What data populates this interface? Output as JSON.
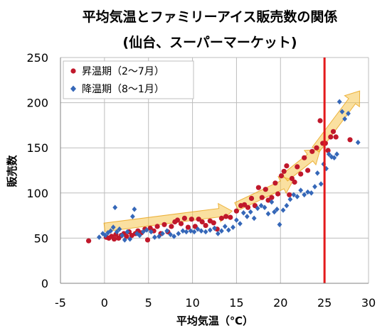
{
  "chart_data": {
    "type": "scatter",
    "title": "平均気温とファミリーアイス販売数の関係",
    "subtitle": "(仙台、スーパーマーケット)",
    "xlabel": "平均気温（℃）",
    "ylabel": "販売数",
    "xlim": [
      -5,
      30
    ],
    "ylim": [
      0,
      250
    ],
    "x_ticks": [
      -5,
      0,
      5,
      10,
      15,
      20,
      25,
      30
    ],
    "y_ticks": [
      0,
      50,
      100,
      150,
      200,
      250
    ],
    "grid": true,
    "legend_position": "top-left",
    "reference_line": {
      "axis": "x",
      "value": 25,
      "color": "#e31a1c"
    },
    "trend_arrows": [
      {
        "from": [
          0,
          62
        ],
        "to": [
          14.5,
          80
        ],
        "color": "#f5c242"
      },
      {
        "from": [
          15,
          85
        ],
        "to": [
          21.5,
          115
        ],
        "color": "#f5c242"
      },
      {
        "from": [
          20.5,
          117
        ],
        "to": [
          24.5,
          148
        ],
        "color": "#f5c242"
      },
      {
        "from": [
          24,
          148
        ],
        "to": [
          29,
          213
        ],
        "color": "#f5c242"
      }
    ],
    "series": [
      {
        "name": "昇温期（2～7月）",
        "marker": "circle",
        "color": "#c0182b",
        "points": [
          [
            -1.8,
            47
          ],
          [
            0.2,
            51
          ],
          [
            0.5,
            50
          ],
          [
            0.8,
            52
          ],
          [
            1.1,
            49
          ],
          [
            1.3,
            54
          ],
          [
            1.6,
            50
          ],
          [
            1.9,
            53
          ],
          [
            2.2,
            55
          ],
          [
            2.5,
            52
          ],
          [
            2.8,
            57
          ],
          [
            3.1,
            53
          ],
          [
            3.5,
            55
          ],
          [
            3.8,
            58
          ],
          [
            4.2,
            56
          ],
          [
            4.6,
            60
          ],
          [
            4.9,
            48
          ],
          [
            5.2,
            61
          ],
          [
            5.6,
            58
          ],
          [
            6.0,
            63
          ],
          [
            6.4,
            55
          ],
          [
            6.8,
            65
          ],
          [
            7.2,
            57
          ],
          [
            7.6,
            63
          ],
          [
            8.0,
            68
          ],
          [
            8.3,
            70
          ],
          [
            8.7,
            66
          ],
          [
            9.1,
            72
          ],
          [
            9.5,
            62
          ],
          [
            9.9,
            71
          ],
          [
            10.3,
            63
          ],
          [
            10.7,
            71
          ],
          [
            11.1,
            68
          ],
          [
            11.5,
            64
          ],
          [
            12.0,
            69
          ],
          [
            12.4,
            67
          ],
          [
            12.8,
            60
          ],
          [
            13.3,
            72
          ],
          [
            13.8,
            74
          ],
          [
            14.3,
            73
          ],
          [
            15.0,
            80
          ],
          [
            15.5,
            86
          ],
          [
            15.9,
            87
          ],
          [
            16.3,
            84
          ],
          [
            16.7,
            94
          ],
          [
            17.1,
            86
          ],
          [
            17.5,
            106
          ],
          [
            17.9,
            95
          ],
          [
            18.3,
            104
          ],
          [
            18.6,
            92
          ],
          [
            19.0,
            95
          ],
          [
            19.4,
            111
          ],
          [
            19.7,
            99
          ],
          [
            20.1,
            119
          ],
          [
            20.4,
            124
          ],
          [
            20.7,
            130
          ],
          [
            21.0,
            98
          ],
          [
            21.3,
            116
          ],
          [
            21.6,
            112
          ],
          [
            21.9,
            129
          ],
          [
            22.3,
            121
          ],
          [
            22.7,
            139
          ],
          [
            23.1,
            125
          ],
          [
            23.6,
            146
          ],
          [
            24.1,
            150
          ],
          [
            24.5,
            180
          ],
          [
            24.8,
            155
          ],
          [
            25.1,
            155
          ],
          [
            25.4,
            147
          ],
          [
            25.7,
            162
          ],
          [
            26.0,
            168
          ],
          [
            26.3,
            162
          ],
          [
            27.9,
            159
          ]
        ]
      },
      {
        "name": "降温期（8～1月）",
        "marker": "diamond",
        "color": "#3567b8",
        "points": [
          [
            -0.6,
            51
          ],
          [
            -0.2,
            55
          ],
          [
            0.1,
            53
          ],
          [
            0.4,
            56
          ],
          [
            0.7,
            58
          ],
          [
            1.0,
            62
          ],
          [
            1.2,
            84
          ],
          [
            1.4,
            57
          ],
          [
            1.7,
            60
          ],
          [
            2.0,
            53
          ],
          [
            2.3,
            48
          ],
          [
            2.6,
            57
          ],
          [
            2.9,
            49
          ],
          [
            3.2,
            74
          ],
          [
            3.4,
            82
          ],
          [
            3.7,
            55
          ],
          [
            4.0,
            53
          ],
          [
            4.4,
            57
          ],
          [
            4.8,
            59
          ],
          [
            5.3,
            57
          ],
          [
            5.7,
            51
          ],
          [
            6.2,
            52
          ],
          [
            6.6,
            55
          ],
          [
            7.1,
            58
          ],
          [
            7.5,
            54
          ],
          [
            7.9,
            52
          ],
          [
            8.4,
            55
          ],
          [
            8.9,
            58
          ],
          [
            9.3,
            57
          ],
          [
            9.8,
            58
          ],
          [
            10.2,
            57
          ],
          [
            10.6,
            60
          ],
          [
            11.0,
            58
          ],
          [
            11.5,
            57
          ],
          [
            12.0,
            59
          ],
          [
            12.5,
            61
          ],
          [
            12.9,
            55
          ],
          [
            13.3,
            58
          ],
          [
            13.7,
            63
          ],
          [
            14.1,
            59
          ],
          [
            14.6,
            62
          ],
          [
            15.0,
            70
          ],
          [
            15.4,
            66
          ],
          [
            15.8,
            78
          ],
          [
            16.2,
            74
          ],
          [
            16.6,
            79
          ],
          [
            17.0,
            72
          ],
          [
            17.4,
            83
          ],
          [
            17.8,
            86
          ],
          [
            18.2,
            84
          ],
          [
            18.6,
            77
          ],
          [
            19.0,
            90
          ],
          [
            19.3,
            79
          ],
          [
            19.6,
            82
          ],
          [
            19.9,
            65
          ],
          [
            20.3,
            81
          ],
          [
            20.7,
            86
          ],
          [
            21.1,
            93
          ],
          [
            21.5,
            98
          ],
          [
            21.9,
            96
          ],
          [
            22.3,
            103
          ],
          [
            22.7,
            98
          ],
          [
            23.1,
            101
          ],
          [
            23.5,
            100
          ],
          [
            23.9,
            107
          ],
          [
            24.2,
            122
          ],
          [
            24.6,
            110
          ],
          [
            24.9,
            132
          ],
          [
            25.2,
            127
          ],
          [
            25.5,
            143
          ],
          [
            25.8,
            140
          ],
          [
            26.1,
            139
          ],
          [
            26.4,
            143
          ],
          [
            26.7,
            201
          ],
          [
            27.0,
            190
          ],
          [
            27.3,
            182
          ],
          [
            27.7,
            188
          ],
          [
            28.8,
            156
          ]
        ]
      }
    ]
  }
}
